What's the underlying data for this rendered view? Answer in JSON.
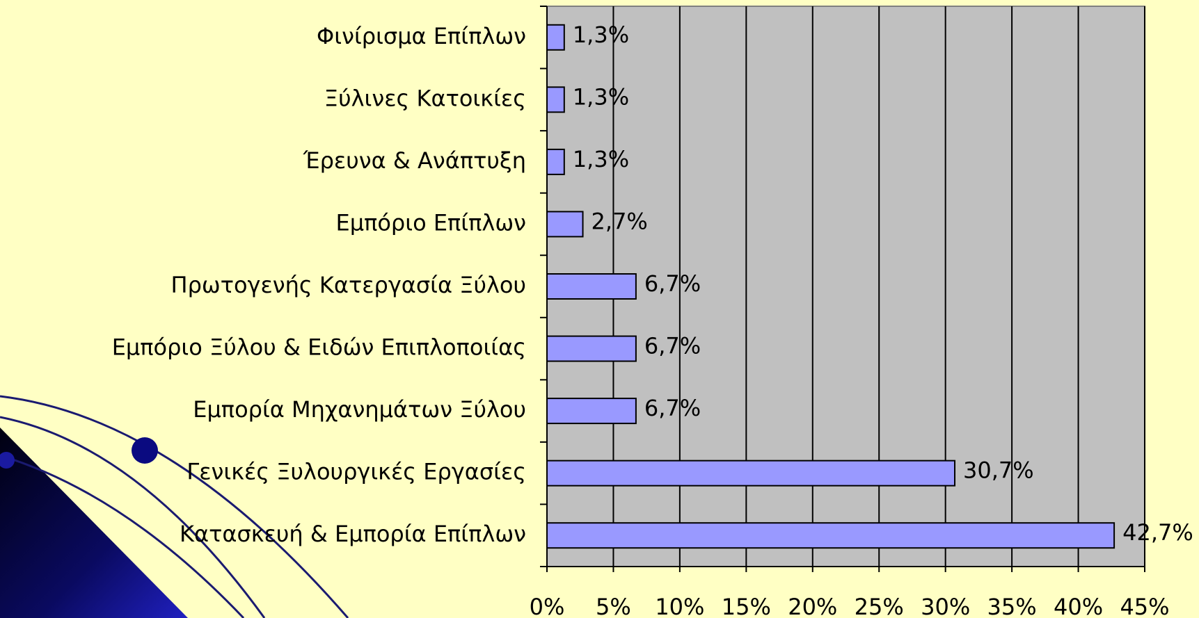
{
  "chart_data": {
    "type": "hbar",
    "categories": [
      "Φινίρισμα Επίπλων",
      "Ξύλινες Κατοικίες",
      "Έρευνα & Ανάπτυξη",
      "Εμπόριο Επίπλων",
      "Πρωτογενής Κατεργασία Ξύλου",
      "Εμπόριο Ξύλου & Ειδών Επιπλοποιίας",
      "Εμπορία Μηχανημάτων Ξύλου",
      "Γενικές Ξυλουργικές Εργασίες",
      "Κατασκευή & Εμπορία Επίπλων"
    ],
    "values": [
      1.3,
      1.3,
      1.3,
      2.7,
      6.7,
      6.7,
      6.7,
      30.7,
      42.7
    ],
    "value_labels": [
      "1,3%",
      "1,3%",
      "1,3%",
      "2,7%",
      "6,7%",
      "6,7%",
      "6,7%",
      "30,7%",
      "42,7%"
    ],
    "color": "#9999ff",
    "xlim": [
      0,
      45
    ],
    "xticks": [
      {
        "value": 0,
        "label": "0%"
      },
      {
        "value": 5,
        "label": "5%"
      },
      {
        "value": 10,
        "label": "10%"
      },
      {
        "value": 15,
        "label": "15%"
      },
      {
        "value": 20,
        "label": "20%"
      },
      {
        "value": 25,
        "label": "25%"
      },
      {
        "value": 30,
        "label": "30%"
      },
      {
        "value": 35,
        "label": "35%"
      },
      {
        "value": 40,
        "label": "40%"
      },
      {
        "value": 45,
        "label": "45%"
      }
    ],
    "grid": true
  }
}
